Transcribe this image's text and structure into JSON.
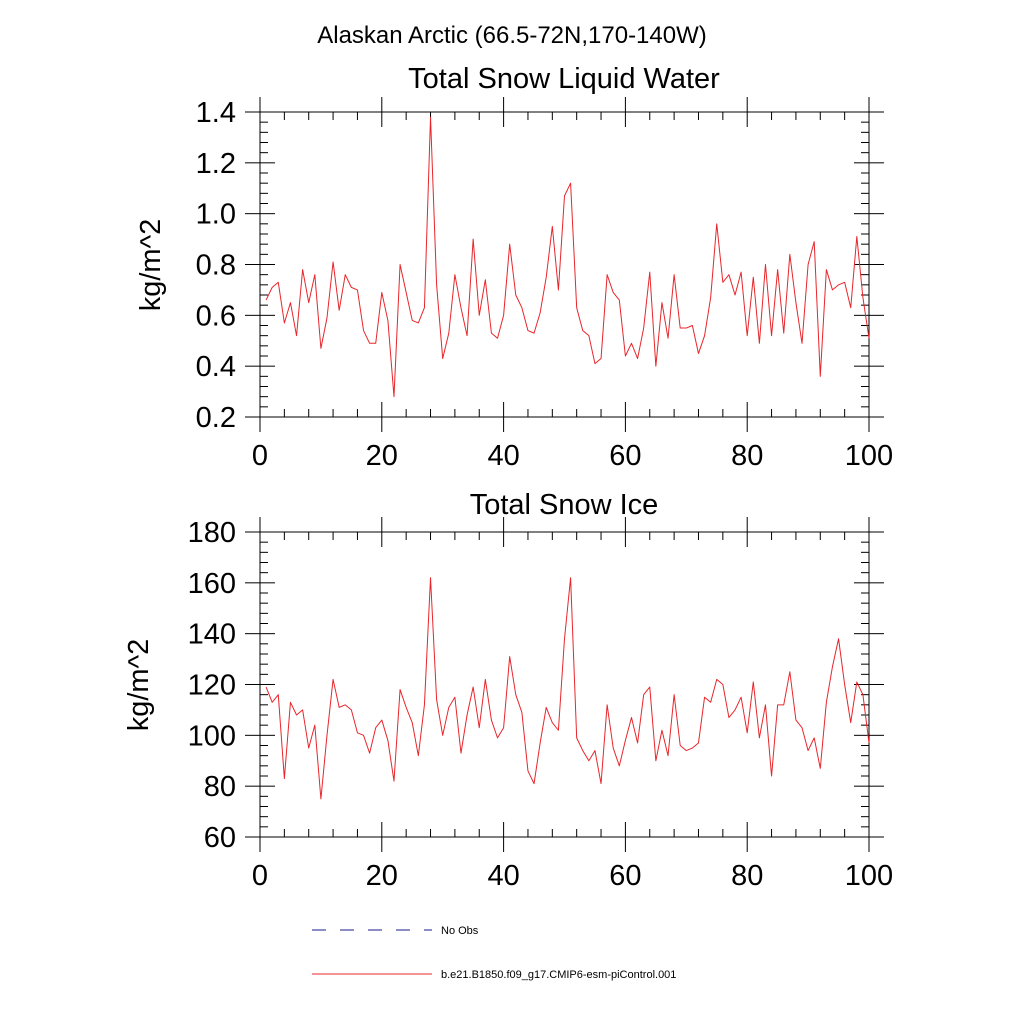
{
  "figure_title": "Alaskan Arctic (66.5-72N,170-140W)",
  "legend": [
    {
      "label": "No Obs",
      "style": "dashed",
      "color": "#1a1a8c"
    },
    {
      "label": "b.e21.B1850.f09_g17.CMIP6-esm-piControl.001",
      "style": "solid",
      "color": "#e8262b"
    }
  ],
  "chart_data": [
    {
      "type": "line",
      "title": "Total Snow Liquid Water",
      "xlabel": "",
      "ylabel": "kg/m^2",
      "xlim": [
        0,
        100
      ],
      "ylim": [
        0.2,
        1.4
      ],
      "xticks": [
        0,
        20,
        40,
        60,
        80,
        100
      ],
      "yticks": [
        0.2,
        0.4,
        0.6,
        0.8,
        1.0,
        1.2,
        1.4
      ],
      "ytick_labels": [
        "0.2",
        "0.4",
        "0.6",
        "0.8",
        "1.0",
        "1.2",
        "1.4"
      ],
      "grid": false,
      "series": [
        {
          "color": "#e8262b",
          "x_start": 1,
          "x_step": 1,
          "values": [
            0.66,
            0.71,
            0.73,
            0.57,
            0.65,
            0.52,
            0.78,
            0.65,
            0.76,
            0.47,
            0.59,
            0.81,
            0.62,
            0.76,
            0.71,
            0.7,
            0.54,
            0.49,
            0.49,
            0.69,
            0.58,
            0.28,
            0.8,
            0.69,
            0.58,
            0.57,
            0.63,
            1.38,
            0.72,
            0.43,
            0.53,
            0.76,
            0.63,
            0.52,
            0.9,
            0.6,
            0.74,
            0.53,
            0.51,
            0.6,
            0.88,
            0.68,
            0.63,
            0.54,
            0.53,
            0.61,
            0.75,
            0.95,
            0.7,
            1.07,
            1.12,
            0.63,
            0.54,
            0.52,
            0.41,
            0.43,
            0.76,
            0.69,
            0.66,
            0.44,
            0.49,
            0.43,
            0.55,
            0.77,
            0.4,
            0.65,
            0.51,
            0.76,
            0.55,
            0.55,
            0.56,
            0.45,
            0.52,
            0.67,
            0.96,
            0.73,
            0.76,
            0.68,
            0.77,
            0.52,
            0.75,
            0.49,
            0.8,
            0.52,
            0.78,
            0.53,
            0.84,
            0.65,
            0.49,
            0.8,
            0.89,
            0.36,
            0.78,
            0.7,
            0.72,
            0.73,
            0.63,
            0.91,
            0.67,
            0.51
          ]
        }
      ]
    },
    {
      "type": "line",
      "title": "Total Snow Ice",
      "xlabel": "",
      "ylabel": "kg/m^2",
      "xlim": [
        0,
        100
      ],
      "ylim": [
        60,
        180
      ],
      "xticks": [
        0,
        20,
        40,
        60,
        80,
        100
      ],
      "yticks": [
        60,
        80,
        100,
        120,
        140,
        160,
        180
      ],
      "ytick_labels": [
        "60",
        "80",
        "100",
        "120",
        "140",
        "160",
        "180"
      ],
      "grid": false,
      "series": [
        {
          "color": "#e8262b",
          "x_start": 1,
          "x_step": 1,
          "values": [
            119,
            113,
            116,
            83,
            113,
            108,
            110,
            95,
            104,
            75,
            100,
            122,
            111,
            112,
            110,
            101,
            100,
            93,
            103,
            106,
            98,
            82,
            118,
            111,
            105,
            92,
            112,
            162,
            114,
            100,
            111,
            115,
            93,
            108,
            119,
            103,
            122,
            106,
            99,
            103,
            131,
            116,
            109,
            86,
            81,
            97,
            111,
            105,
            102,
            138,
            162,
            99,
            94,
            90,
            94,
            81,
            112,
            95,
            88,
            98,
            107,
            97,
            116,
            119,
            90,
            102,
            92,
            116,
            96,
            94,
            95,
            97,
            115,
            113,
            122,
            120,
            107,
            110,
            115,
            101,
            121,
            99,
            112,
            84,
            112,
            112,
            125,
            106,
            103,
            94,
            99,
            87,
            113,
            127,
            138,
            120,
            105,
            121,
            116,
            97
          ]
        }
      ]
    }
  ]
}
